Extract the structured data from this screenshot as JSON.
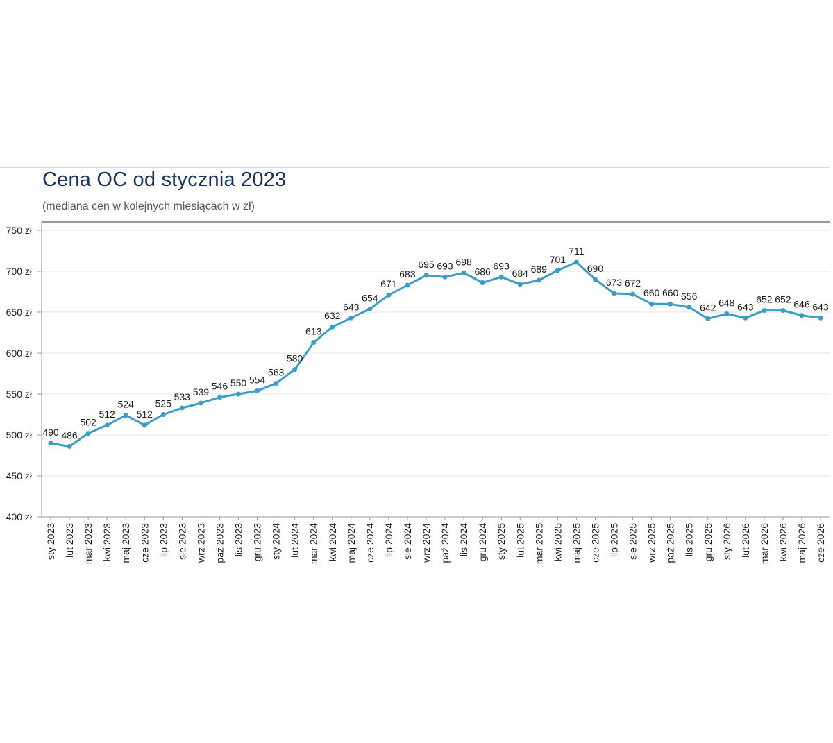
{
  "chart_data": {
    "type": "line",
    "title": "Cena OC od stycznia 2023",
    "subtitle": "(mediana cen w kolejnych miesiącach w zł)",
    "xlabel": "",
    "ylabel": "",
    "ylim": [
      400,
      750
    ],
    "yticks": [
      400,
      450,
      500,
      550,
      600,
      650,
      700,
      750
    ],
    "ytick_suffix": " zł",
    "grid": true,
    "legend": "none",
    "line_color": "#3a9dc6",
    "categories": [
      "sty 2023",
      "lut 2023",
      "mar 2023",
      "kwi 2023",
      "maj 2023",
      "cze 2023",
      "lip 2023",
      "sie 2023",
      "wrz 2023",
      "paź 2023",
      "lis 2023",
      "gru 2023",
      "sty 2024",
      "lut 2024",
      "mar 2024",
      "kwi 2024",
      "maj 2024",
      "cze 2024",
      "lip 2024",
      "sie 2024",
      "wrz 2024",
      "paź 2024",
      "lis 2024",
      "gru 2024",
      "sty 2025",
      "lut 2025",
      "mar 2025",
      "kwi 2025",
      "maj 2025",
      "cze 2025",
      "lip 2025",
      "sie 2025",
      "wrz 2025",
      "paź 2025",
      "lis 2025",
      "gru 2025",
      "sty 2026",
      "lut 2026",
      "mar 2026",
      "kwi 2026",
      "maj 2026",
      "cze 2026"
    ],
    "series": [
      {
        "values": [
          490,
          486,
          502,
          512,
          524,
          512,
          525,
          533,
          539,
          546,
          550,
          554,
          563,
          580,
          613,
          632,
          643,
          654,
          671,
          683,
          695,
          693,
          698,
          686,
          693,
          684,
          689,
          701,
          711,
          690,
          673,
          672,
          660,
          660,
          656,
          642,
          648,
          643,
          652,
          652,
          646,
          643
        ]
      }
    ]
  }
}
